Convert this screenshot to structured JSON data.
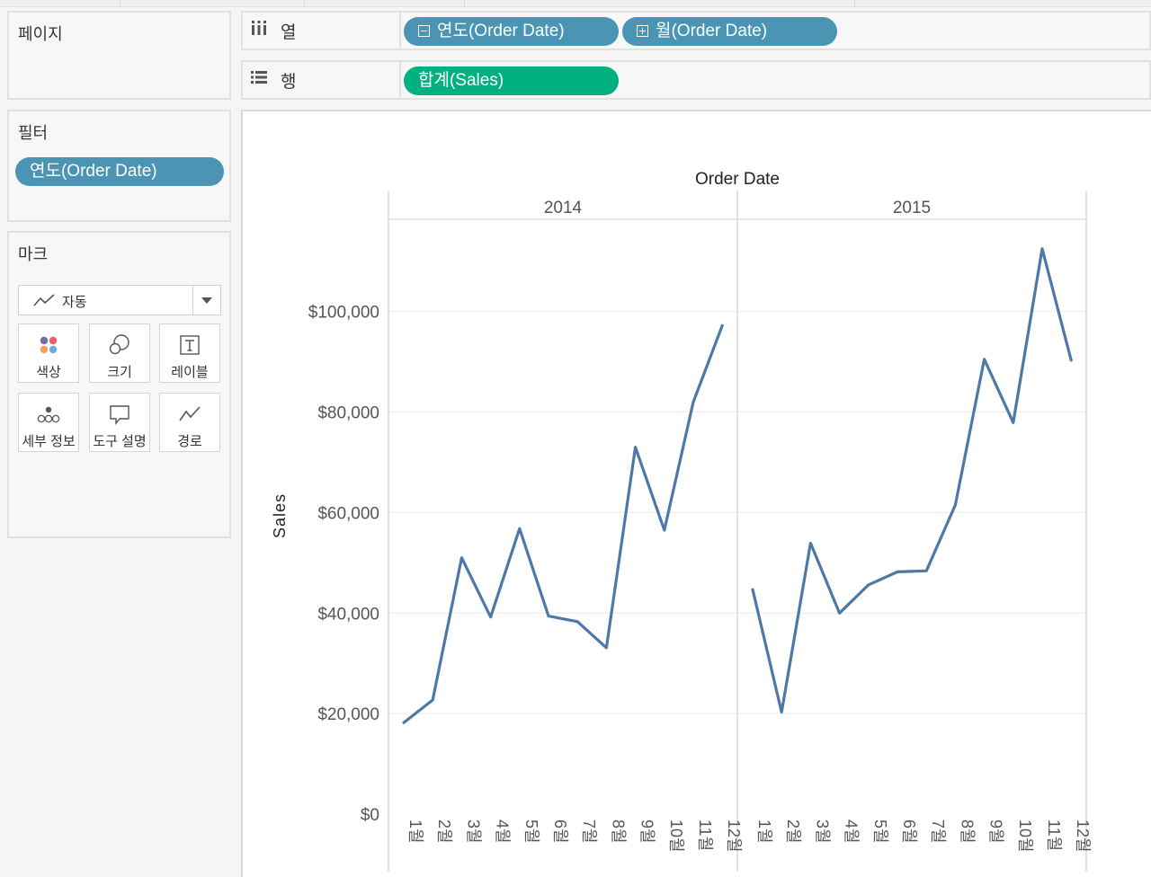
{
  "pages_card": {
    "title": "페이지"
  },
  "filters_card": {
    "title": "필터",
    "pills": [
      {
        "label": "연도(Order Date)"
      }
    ]
  },
  "marks_card": {
    "title": "마크",
    "mark_type": "자동",
    "buttons": [
      {
        "label": "색상",
        "icon": "color-icon"
      },
      {
        "label": "크기",
        "icon": "size-icon"
      },
      {
        "label": "레이블",
        "icon": "label-icon"
      },
      {
        "label": "세부 정보",
        "icon": "detail-icon"
      },
      {
        "label": "도구 설명",
        "icon": "tooltip-icon"
      },
      {
        "label": "경로",
        "icon": "path-icon"
      }
    ]
  },
  "columns_shelf": {
    "label": "열",
    "pills": [
      {
        "label": "연도(Order Date)"
      },
      {
        "label": "월(Order Date)"
      }
    ]
  },
  "rows_shelf": {
    "label": "행",
    "pills": [
      {
        "label": "합계(Sales)"
      }
    ]
  },
  "colors": {
    "line": "#4e79a7",
    "blue_pill": "#4b94b3",
    "green_pill": "#00b180"
  },
  "chart_data": {
    "type": "line",
    "title": "Order Date",
    "ylabel": "Sales",
    "ylim": [
      0,
      118000
    ],
    "y_ticks": [
      0,
      20000,
      40000,
      60000,
      80000,
      100000
    ],
    "y_tick_labels": [
      "$0",
      "$20,000",
      "$40,000",
      "$60,000",
      "$80,000",
      "$100,000"
    ],
    "categories": [
      "1월",
      "2월",
      "3월",
      "4월",
      "5월",
      "6월",
      "7월",
      "8월",
      "9월",
      "10월",
      "11월",
      "12월"
    ],
    "panes": [
      {
        "name": "2014",
        "values": [
          18200,
          22700,
          51000,
          39200,
          56800,
          39400,
          38300,
          33100,
          73000,
          56500,
          82000,
          97200
        ]
      },
      {
        "name": "2015",
        "values": [
          44700,
          20300,
          53900,
          40000,
          45600,
          48200,
          48400,
          61500,
          90500,
          77900,
          112500,
          90300
        ]
      }
    ]
  }
}
